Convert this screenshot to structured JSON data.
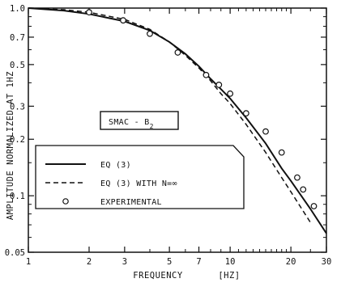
{
  "chart_data": {
    "type": "line",
    "xscale": "log",
    "yscale": "log",
    "xlim": [
      1,
      30
    ],
    "ylim": [
      0.05,
      1.0
    ],
    "xlabel": "FREQUENCY",
    "xlabel_unit": "[HZ]",
    "ylabel": "AMPLITUDE NORMALIZED AT 1HZ",
    "x_ticks": [
      1,
      2,
      3,
      5,
      7,
      10,
      20,
      30
    ],
    "x_tick_labels": [
      "1",
      "2",
      "3",
      "5",
      "7",
      "10",
      "20",
      "30"
    ],
    "y_ticks": [
      0.05,
      0.1,
      0.2,
      0.3,
      0.5,
      0.7,
      1.0
    ],
    "y_tick_labels": [
      "0.05",
      "0.1",
      "0.2",
      "0.3",
      "0.5",
      "0.7",
      "1.0"
    ],
    "station_label": "SMAC - B",
    "station_subscript": "2",
    "legend_placement": "center-left",
    "series": [
      {
        "name": "EQ (3)",
        "style": "solid",
        "x": [
          1,
          1.5,
          2,
          3,
          4,
          5,
          6,
          7,
          8,
          9,
          10,
          12,
          15,
          18,
          20,
          25,
          30
        ],
        "y": [
          1.0,
          0.97,
          0.93,
          0.85,
          0.76,
          0.66,
          0.57,
          0.49,
          0.42,
          0.37,
          0.33,
          0.26,
          0.19,
          0.14,
          0.12,
          0.085,
          0.063
        ]
      },
      {
        "name": "EQ (3) WITH N=∞",
        "style": "dashed",
        "x": [
          1,
          1.5,
          2,
          3,
          4,
          5,
          6,
          7,
          8,
          9,
          10,
          12,
          15,
          18,
          20,
          25
        ],
        "y": [
          1.0,
          0.98,
          0.95,
          0.87,
          0.77,
          0.66,
          0.56,
          0.48,
          0.41,
          0.35,
          0.31,
          0.24,
          0.17,
          0.125,
          0.105,
          0.072
        ]
      },
      {
        "name": "EXPERIMENTAL",
        "style": "markers",
        "x": [
          2,
          2.95,
          4,
          5.5,
          7.6,
          8.8,
          10,
          12,
          15,
          18,
          21.5,
          23,
          26
        ],
        "y": [
          0.95,
          0.86,
          0.73,
          0.58,
          0.44,
          0.39,
          0.35,
          0.275,
          0.22,
          0.17,
          0.125,
          0.108,
          0.088
        ]
      }
    ]
  }
}
